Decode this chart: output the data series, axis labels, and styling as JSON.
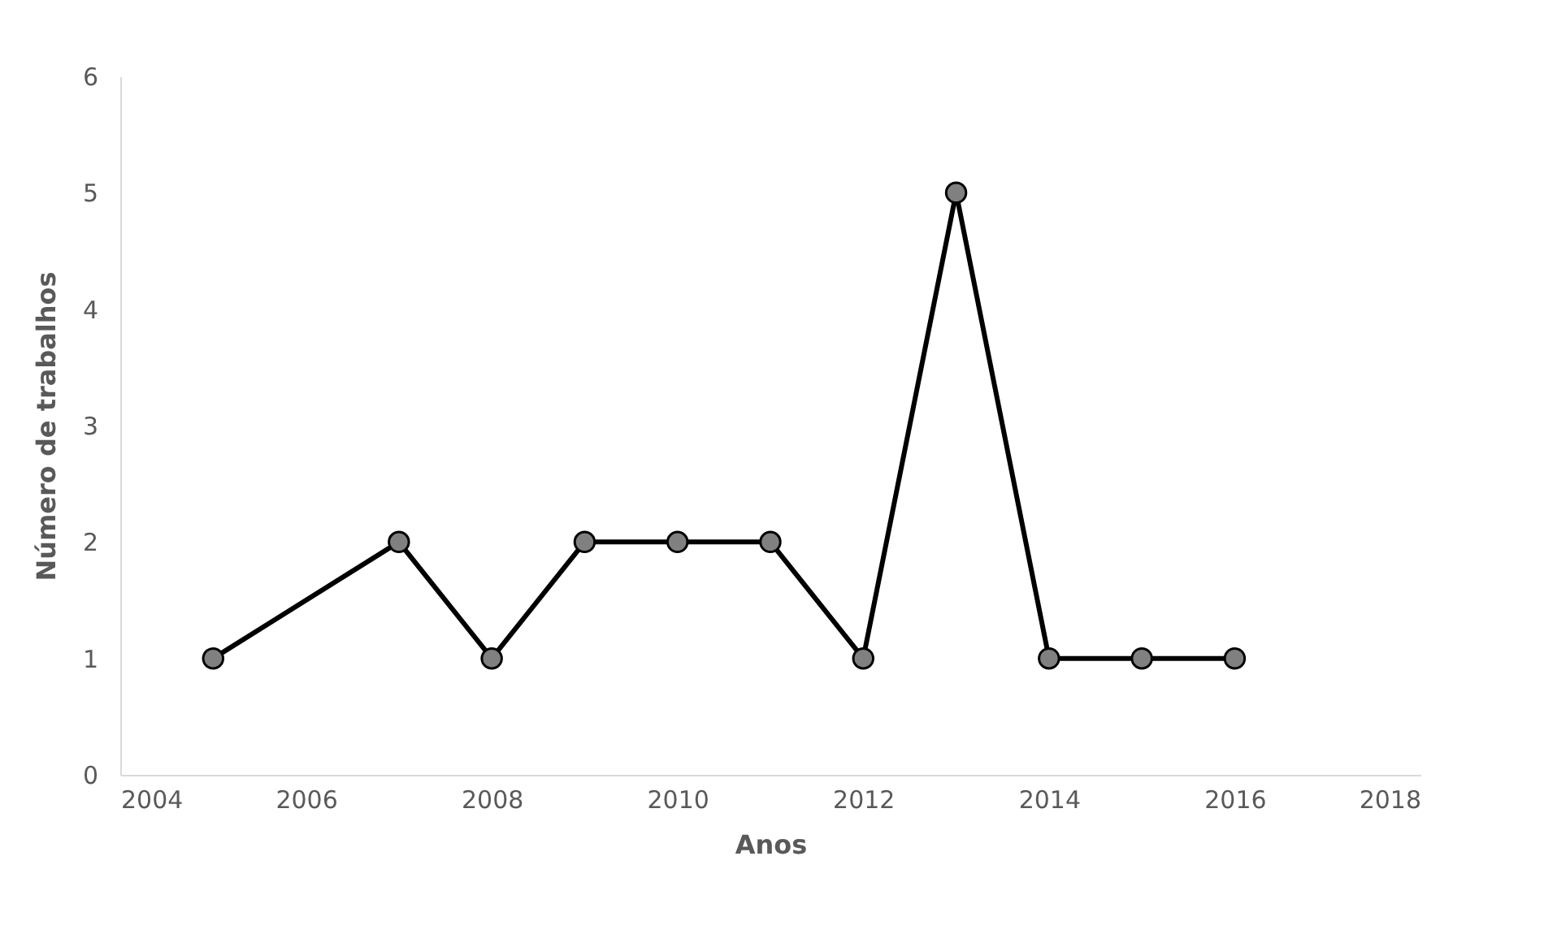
{
  "chart_data": {
    "type": "line",
    "xlabel": "Anos",
    "ylabel": "Número de trabalhos",
    "x": [
      2005,
      2007,
      2008,
      2009,
      2010,
      2011,
      2012,
      2013,
      2014,
      2015,
      2016
    ],
    "series": [
      {
        "color": "#000000",
        "values": [
          1,
          2,
          1,
          2,
          2,
          2,
          1,
          5,
          1,
          1,
          1
        ]
      }
    ],
    "xlim": [
      2004,
      2018
    ],
    "xticks": [
      2004,
      2006,
      2008,
      2010,
      2012,
      2014,
      2016,
      2018
    ],
    "ylim": [
      0,
      6
    ],
    "yticks": [
      0,
      1,
      2,
      3,
      4,
      5,
      6
    ],
    "grid": false,
    "marker": "circle",
    "line_style": "solid"
  }
}
